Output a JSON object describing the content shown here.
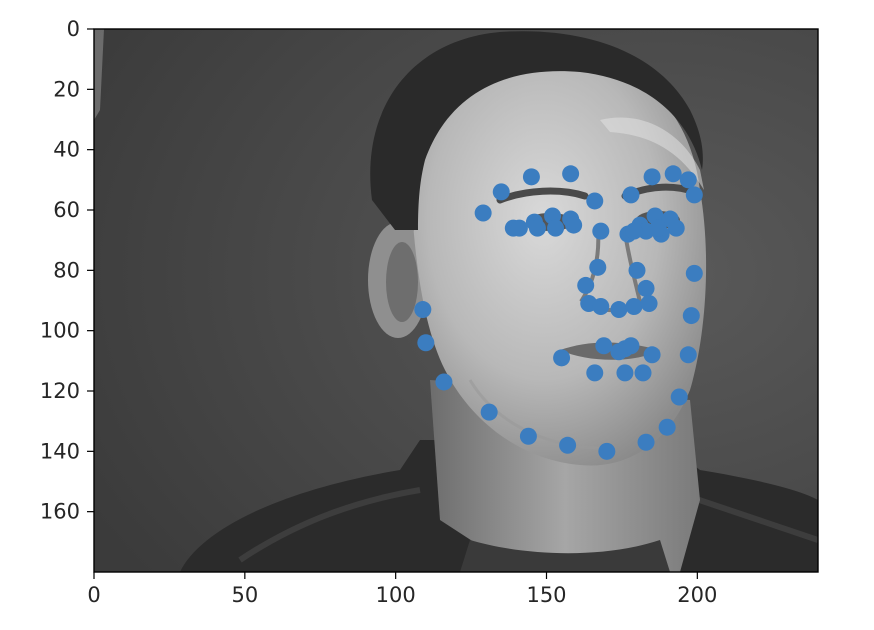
{
  "chart_data": {
    "type": "scatter",
    "title": "",
    "xlabel": "",
    "ylabel": "",
    "xlim": [
      0,
      240
    ],
    "ylim": [
      180,
      0
    ],
    "y_inverted": true,
    "grid": false,
    "background": "grayscale photograph of a man's face, looking slightly to the right",
    "x_ticks": [
      0,
      50,
      100,
      150,
      200
    ],
    "y_ticks": [
      0,
      20,
      40,
      60,
      80,
      100,
      120,
      140,
      160
    ],
    "marker_color": "#3b7dc0",
    "series": [
      {
        "points": [
          [
            109,
            93
          ],
          [
            110,
            104
          ],
          [
            116,
            117
          ],
          [
            131,
            127
          ],
          [
            144,
            135
          ],
          [
            157,
            138
          ],
          [
            170,
            140
          ],
          [
            183,
            137
          ],
          [
            190,
            132
          ],
          [
            194,
            122
          ],
          [
            197,
            108
          ],
          [
            198,
            95
          ],
          [
            199,
            81
          ],
          [
            129,
            61
          ],
          [
            135,
            54
          ],
          [
            145,
            49
          ],
          [
            158,
            48
          ],
          [
            166,
            57
          ],
          [
            178,
            55
          ],
          [
            185,
            49
          ],
          [
            192,
            48
          ],
          [
            197,
            50
          ],
          [
            199,
            55
          ],
          [
            168,
            67
          ],
          [
            167,
            79
          ],
          [
            163,
            85
          ],
          [
            164,
            91
          ],
          [
            168,
            92
          ],
          [
            174,
            93
          ],
          [
            179,
            92
          ],
          [
            180,
            80
          ],
          [
            183,
            86
          ],
          [
            184,
            91
          ],
          [
            139,
            66
          ],
          [
            146,
            64
          ],
          [
            152,
            62
          ],
          [
            158,
            63
          ],
          [
            159,
            65
          ],
          [
            153,
            66
          ],
          [
            147,
            66
          ],
          [
            141,
            66
          ],
          [
            177,
            68
          ],
          [
            181,
            65
          ],
          [
            186,
            62
          ],
          [
            191,
            63
          ],
          [
            193,
            66
          ],
          [
            188,
            68
          ],
          [
            183,
            67
          ],
          [
            179,
            67
          ],
          [
            155,
            109
          ],
          [
            169,
            105
          ],
          [
            176,
            106
          ],
          [
            178,
            105
          ],
          [
            185,
            108
          ],
          [
            182,
            114
          ],
          [
            176,
            114
          ],
          [
            166,
            114
          ],
          [
            174,
            107
          ],
          [
            187,
            66
          ]
        ]
      }
    ]
  }
}
